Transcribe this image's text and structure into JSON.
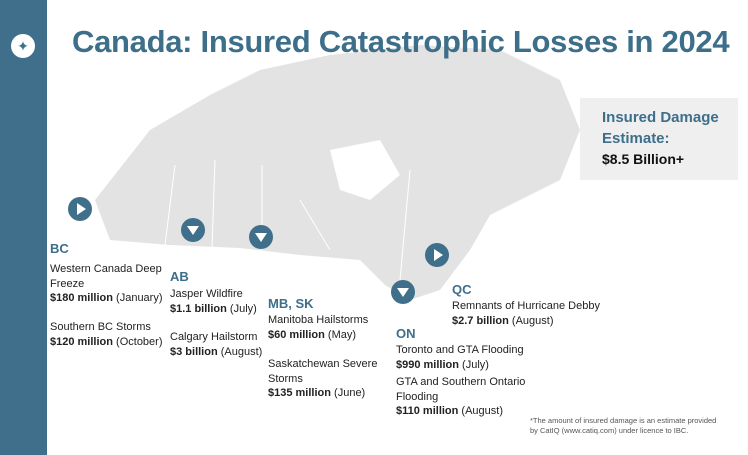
{
  "title": "Canada: Insured Catastrophic Losses in 2024",
  "logo_icon": "maple-leaf-icon",
  "colors": {
    "brand": "#3f6f8a",
    "title": "#3d6e8a",
    "map": "#e3e3e3",
    "box": "#efefef"
  },
  "summary": {
    "label_line1": "Insured Damage",
    "label_line2": "Estimate:",
    "value": "$8.5 Billion+"
  },
  "regions": {
    "bc": {
      "code": "BC",
      "events": [
        {
          "name1": "Western Canada Deep",
          "name2": "Freeze",
          "amount": "$180 million",
          "period": " (January)"
        },
        {
          "name1": "Southern BC Storms",
          "amount": "$120 million",
          "period": " (October)"
        }
      ]
    },
    "ab": {
      "code": "AB",
      "events": [
        {
          "name1": "Jasper Wildfire",
          "amount": "$1.1 billion",
          "period": " (July)"
        },
        {
          "name1": "Calgary Hailstorm",
          "amount": "$3 billion",
          "period": " (August)"
        }
      ]
    },
    "mbsk": {
      "code": "MB, SK",
      "events": [
        {
          "name1": "Manitoba Hailstorms",
          "amount": "$60 million",
          "period": " (May)"
        },
        {
          "name1": "Saskatchewan Severe",
          "name2": "Storms",
          "amount": "$135 million",
          "period": " (June)"
        }
      ]
    },
    "on": {
      "code": "ON",
      "events": [
        {
          "name1": "Toronto and GTA Flooding",
          "amount": "$990 million",
          "period": " (July)"
        },
        {
          "name1": "GTA and Southern Ontario",
          "name2": "Flooding",
          "amount": "$110 million",
          "period": " (August)"
        }
      ]
    },
    "qc": {
      "code": "QC",
      "events": [
        {
          "name1": "Remnants of Hurricane Debby",
          "amount": "$2.7 billion",
          "period": " (August)"
        }
      ]
    }
  },
  "footnote": {
    "line1": "*The amount of insured damage is an estimate provided",
    "line2": "by CatIQ (www.catiq.com) under licence to IBC."
  }
}
